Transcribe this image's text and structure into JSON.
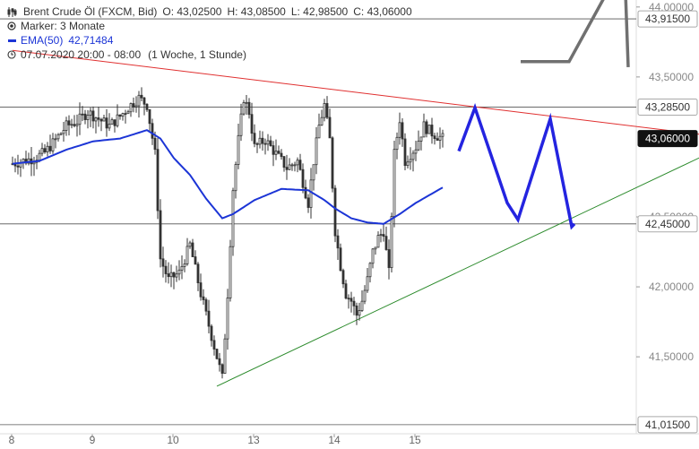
{
  "legend": {
    "title": "Brent Crude Öl (FXCM, Bid)",
    "open": "O: 43,02500",
    "high": "H: 43,08500",
    "low": "L: 42,98500",
    "close": "C: 43,06000",
    "marker": "Marker: 3 Monate",
    "ema_label": "EMA(50)",
    "ema_value": "42,71484",
    "date_range": "07.07.2020 20:00 - 08:00",
    "period": "(1 Woche, 1 Stunde)"
  },
  "colors": {
    "candle": "#333333",
    "ema": "#1c35d6",
    "forecast": "#2424e0",
    "resistance": "#e03030",
    "support": "#2a8a2a",
    "projection": "#707070",
    "level_line": "#555555",
    "grid": "#e6e6e6",
    "badge_bg": "#ffffff",
    "badge_border": "#aaaaaa",
    "badge_current_bg": "#111111"
  },
  "chart_data": {
    "type": "candlestick",
    "ylim": [
      40.95,
      44.05
    ],
    "yticks": [
      "44,00000",
      "43,50000",
      "42,50000",
      "42,00000",
      "41,50000"
    ],
    "ytick_values": [
      44.0,
      43.5,
      42.5,
      42.0,
      41.5
    ],
    "xticks": [
      "8",
      "9",
      "10",
      "13",
      "14",
      "15"
    ],
    "xtick_index": [
      0,
      30,
      60,
      90,
      120,
      150
    ],
    "levels": [
      {
        "value": 43.915,
        "label": "43,91500",
        "style": "light"
      },
      {
        "value": 43.285,
        "label": "43,28500",
        "style": "light"
      },
      {
        "value": 43.06,
        "label": "43,06000",
        "style": "current"
      },
      {
        "value": 42.45,
        "label": "42,45000",
        "style": "light"
      },
      {
        "value": 41.015,
        "label": "41,01500",
        "style": "light"
      }
    ],
    "price_anchors": [
      [
        0,
        42.88
      ],
      [
        4,
        42.9
      ],
      [
        8,
        42.92
      ],
      [
        12,
        42.96
      ],
      [
        16,
        43.05
      ],
      [
        20,
        43.15
      ],
      [
        24,
        43.18
      ],
      [
        28,
        43.25
      ],
      [
        32,
        43.2
      ],
      [
        36,
        43.15
      ],
      [
        40,
        43.22
      ],
      [
        44,
        43.3
      ],
      [
        47,
        43.35
      ],
      [
        50,
        43.3
      ],
      [
        53,
        42.95
      ],
      [
        55,
        42.2
      ],
      [
        58,
        42.05
      ],
      [
        62,
        42.1
      ],
      [
        66,
        42.3
      ],
      [
        70,
        41.95
      ],
      [
        74,
        41.65
      ],
      [
        76,
        41.5
      ],
      [
        78,
        41.35
      ],
      [
        80,
        41.95
      ],
      [
        82,
        42.7
      ],
      [
        84,
        43.05
      ],
      [
        86,
        43.35
      ],
      [
        88,
        43.25
      ],
      [
        90,
        43.0
      ],
      [
        94,
        43.05
      ],
      [
        98,
        42.95
      ],
      [
        102,
        42.85
      ],
      [
        106,
        42.9
      ],
      [
        108,
        42.75
      ],
      [
        110,
        42.6
      ],
      [
        112,
        42.9
      ],
      [
        114,
        43.15
      ],
      [
        116,
        43.3
      ],
      [
        118,
        43.05
      ],
      [
        120,
        42.4
      ],
      [
        122,
        42.15
      ],
      [
        124,
        41.95
      ],
      [
        126,
        41.9
      ],
      [
        128,
        41.8
      ],
      [
        130,
        41.9
      ],
      [
        132,
        42.05
      ],
      [
        134,
        42.25
      ],
      [
        136,
        42.35
      ],
      [
        138,
        42.4
      ],
      [
        140,
        42.1
      ],
      [
        142,
        42.95
      ],
      [
        144,
        43.2
      ],
      [
        146,
        42.9
      ],
      [
        150,
        43.0
      ],
      [
        153,
        43.15
      ],
      [
        156,
        43.1
      ],
      [
        160,
        43.06
      ]
    ],
    "ema_anchors": [
      [
        0,
        42.88
      ],
      [
        10,
        42.9
      ],
      [
        20,
        42.98
      ],
      [
        30,
        43.04
      ],
      [
        40,
        43.06
      ],
      [
        50,
        43.12
      ],
      [
        55,
        43.06
      ],
      [
        60,
        42.92
      ],
      [
        66,
        42.8
      ],
      [
        72,
        42.63
      ],
      [
        78,
        42.49
      ],
      [
        82,
        42.52
      ],
      [
        90,
        42.62
      ],
      [
        100,
        42.7
      ],
      [
        110,
        42.69
      ],
      [
        116,
        42.62
      ],
      [
        120,
        42.56
      ],
      [
        126,
        42.49
      ],
      [
        132,
        42.46
      ],
      [
        138,
        42.45
      ],
      [
        144,
        42.52
      ],
      [
        150,
        42.6
      ],
      [
        160,
        42.71
      ]
    ],
    "resistance": [
      [
        0,
        43.69
      ],
      [
        260,
        43.08
      ]
    ],
    "support": [
      [
        76,
        41.29
      ],
      [
        264,
        43.0
      ]
    ],
    "forecast": [
      [
        166,
        42.97
      ],
      [
        172,
        43.28
      ],
      [
        184,
        42.6
      ],
      [
        188,
        42.48
      ],
      [
        200,
        43.2
      ],
      [
        208,
        42.43
      ],
      [
        209,
        42.45
      ]
    ],
    "projection": [
      [
        189,
        43.61
      ],
      [
        207,
        43.61
      ],
      [
        221,
        44.1
      ],
      [
        228,
        44.1
      ],
      [
        229,
        43.57
      ]
    ]
  }
}
